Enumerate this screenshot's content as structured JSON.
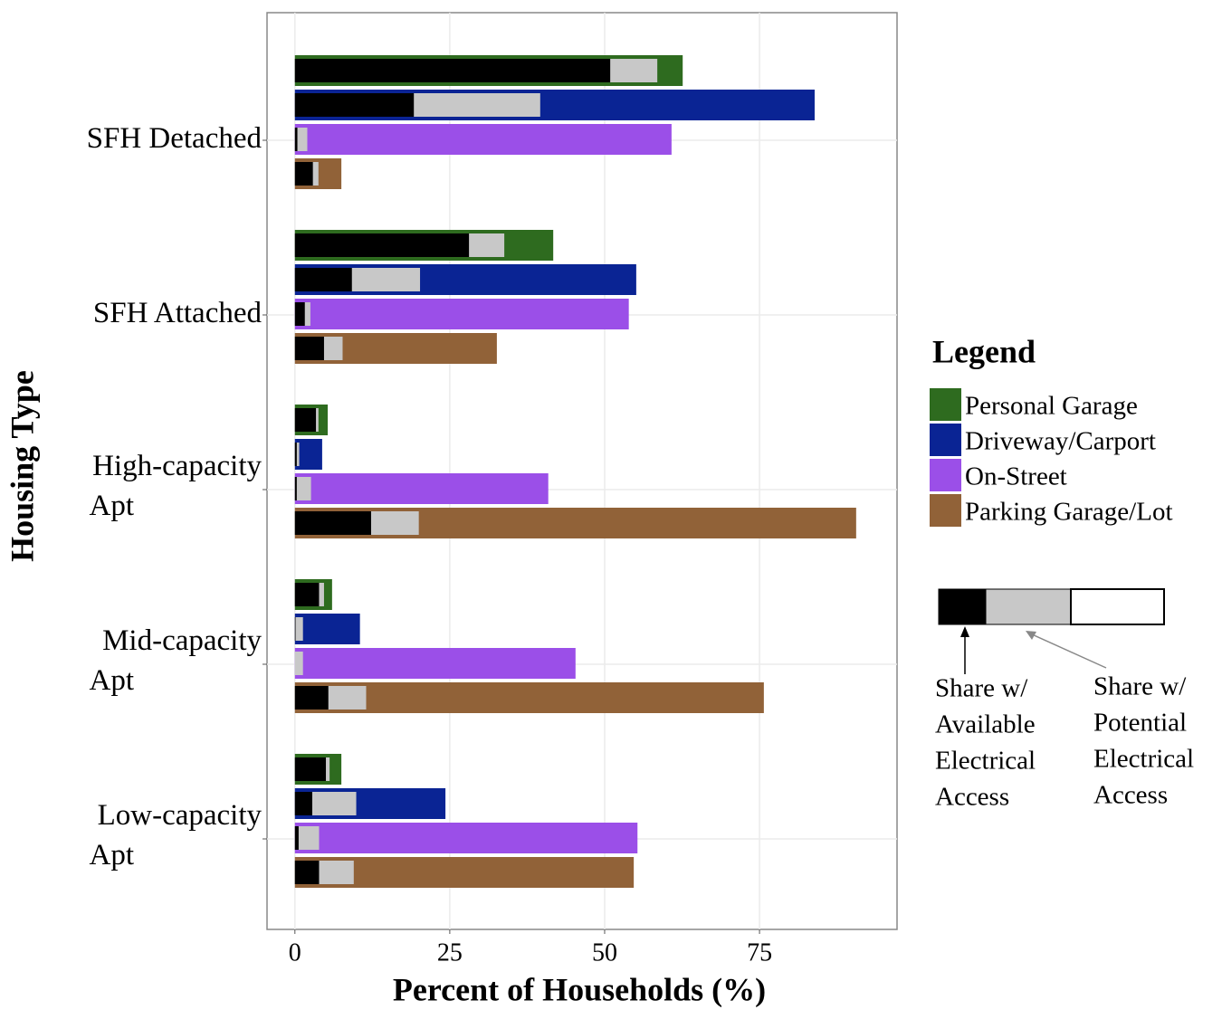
{
  "chart_data": {
    "type": "bar",
    "x_label": "Percent of Households (%)",
    "y_label": "Housing Type",
    "categories": [
      [
        "SFH Detached"
      ],
      [
        "SFH Attached"
      ],
      [
        "High-capacity",
        "Apt"
      ],
      [
        "Mid-capacity",
        "Apt"
      ],
      [
        "Low-capacity",
        "Apt"
      ]
    ],
    "series": [
      {
        "name": "Personal Garage",
        "color": "#2e6b1f",
        "values": [
          62.6,
          41.7,
          5.3,
          6.0,
          7.5
        ],
        "available": [
          50.9,
          28.1,
          3.4,
          3.9,
          5.0
        ],
        "potential": [
          58.5,
          33.8,
          3.8,
          4.7,
          5.6
        ]
      },
      {
        "name": "Driveway/Carport",
        "color": "#0a2494",
        "values": [
          83.9,
          55.1,
          4.4,
          10.5,
          24.3
        ],
        "available": [
          19.2,
          9.2,
          0.3,
          0.1,
          2.8
        ],
        "potential": [
          39.6,
          20.2,
          0.7,
          1.3,
          9.9
        ]
      },
      {
        "name": "On-Street",
        "color": "#9b4fe8",
        "values": [
          60.8,
          53.9,
          40.9,
          45.3,
          55.3
        ],
        "available": [
          0.4,
          1.6,
          0.3,
          0,
          0.6
        ],
        "potential": [
          2.0,
          2.5,
          2.6,
          1.3,
          3.9
        ]
      },
      {
        "name": "Parking Garage/Lot",
        "color": "#916238",
        "values": [
          7.5,
          32.6,
          90.6,
          75.7,
          54.7
        ],
        "available": [
          2.9,
          4.7,
          12.3,
          5.4,
          3.9
        ],
        "potential": [
          3.8,
          7.7,
          20.0,
          11.5,
          9.5
        ]
      }
    ],
    "available_color": "#000000",
    "potential_color": "#c8c8c8",
    "xlim": [
      -4.5,
      97.2
    ],
    "xticks": [
      0,
      25,
      50,
      75
    ],
    "grid": true,
    "legend_title": "Legend",
    "annotations": [
      [
        "Share w/",
        "Available",
        "Electrical",
        "Access"
      ],
      [
        "Share w/",
        "Potential",
        "Electrical",
        "Access"
      ]
    ]
  }
}
